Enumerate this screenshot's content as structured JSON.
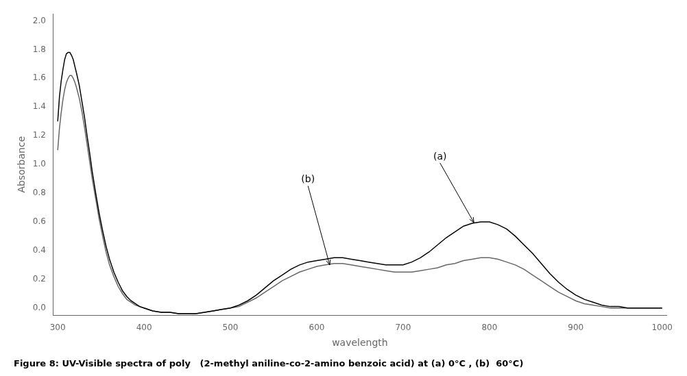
{
  "chart_data": {
    "type": "line",
    "caption": "Figure 8: UV-Visible spectra of poly   (2-methyl aniline-co-2-amino benzoic acid) at (a) 0°C , (b)  60°C)",
    "xlabel": "wavelength",
    "ylabel": "Absorbance",
    "xlim": [
      295,
      1005
    ],
    "ylim": [
      -0.05,
      2.05
    ],
    "xticks": [
      300,
      400,
      500,
      600,
      700,
      800,
      900,
      1000
    ],
    "yticks": [
      {
        "value": 0.0,
        "label": "0.0"
      },
      0.2,
      0.4,
      0.6,
      0.8,
      {
        "value": 1.0,
        "label": "1.0"
      },
      1.2,
      1.4,
      1.6,
      1.8,
      {
        "value": 2.0,
        "label": "2.0"
      }
    ],
    "grid": false,
    "x": [
      300,
      302,
      304,
      306,
      308,
      310,
      312,
      314,
      316,
      318,
      320,
      322,
      325,
      328,
      331,
      334,
      337,
      340,
      344,
      348,
      352,
      356,
      360,
      365,
      370,
      375,
      380,
      385,
      390,
      395,
      400,
      410,
      420,
      430,
      440,
      450,
      460,
      470,
      480,
      490,
      500,
      510,
      520,
      530,
      540,
      550,
      560,
      570,
      580,
      590,
      600,
      610,
      620,
      630,
      640,
      650,
      660,
      670,
      680,
      690,
      700,
      710,
      720,
      730,
      740,
      750,
      760,
      770,
      780,
      790,
      800,
      810,
      820,
      830,
      840,
      850,
      860,
      870,
      880,
      890,
      900,
      910,
      920,
      930,
      940,
      950,
      960,
      970,
      980,
      990,
      1000
    ],
    "series": [
      {
        "color": "#000000",
        "values": [
          1.3,
          1.47,
          1.58,
          1.66,
          1.73,
          1.77,
          1.78,
          1.78,
          1.76,
          1.73,
          1.68,
          1.63,
          1.55,
          1.44,
          1.33,
          1.2,
          1.08,
          0.95,
          0.8,
          0.66,
          0.54,
          0.43,
          0.34,
          0.25,
          0.18,
          0.12,
          0.08,
          0.05,
          0.03,
          0.01,
          0.0,
          -0.02,
          -0.03,
          -0.03,
          -0.04,
          -0.04,
          -0.04,
          -0.03,
          -0.02,
          -0.01,
          0.0,
          0.02,
          0.05,
          0.09,
          0.14,
          0.19,
          0.23,
          0.27,
          0.3,
          0.32,
          0.33,
          0.34,
          0.35,
          0.35,
          0.34,
          0.33,
          0.32,
          0.31,
          0.3,
          0.3,
          0.3,
          0.32,
          0.35,
          0.39,
          0.44,
          0.49,
          0.53,
          0.57,
          0.59,
          0.6,
          0.6,
          0.58,
          0.55,
          0.5,
          0.44,
          0.38,
          0.31,
          0.24,
          0.18,
          0.13,
          0.09,
          0.06,
          0.04,
          0.02,
          0.01,
          0.01,
          0.0,
          0.0,
          0.0,
          0.0,
          0.0
        ]
      },
      {
        "color": "#666666",
        "values": [
          1.1,
          1.25,
          1.36,
          1.45,
          1.52,
          1.57,
          1.6,
          1.62,
          1.62,
          1.6,
          1.57,
          1.53,
          1.46,
          1.37,
          1.26,
          1.14,
          1.02,
          0.9,
          0.76,
          0.62,
          0.5,
          0.39,
          0.3,
          0.22,
          0.15,
          0.1,
          0.06,
          0.04,
          0.02,
          0.01,
          0.0,
          -0.02,
          -0.03,
          -0.03,
          -0.04,
          -0.04,
          -0.04,
          -0.03,
          -0.02,
          -0.01,
          0.0,
          0.01,
          0.04,
          0.07,
          0.11,
          0.15,
          0.19,
          0.22,
          0.25,
          0.27,
          0.29,
          0.3,
          0.31,
          0.31,
          0.3,
          0.29,
          0.28,
          0.27,
          0.26,
          0.25,
          0.25,
          0.25,
          0.26,
          0.27,
          0.28,
          0.3,
          0.31,
          0.33,
          0.34,
          0.35,
          0.35,
          0.34,
          0.32,
          0.3,
          0.27,
          0.23,
          0.19,
          0.15,
          0.11,
          0.08,
          0.05,
          0.03,
          0.02,
          0.01,
          0.0,
          0.0,
          0.0,
          0.0,
          0.0,
          0.0,
          0.0
        ]
      }
    ],
    "annotations": [
      {
        "text": "(a)",
        "xy": [
          782,
          0.595
        ],
        "xytext": [
          735,
          1.02
        ]
      },
      {
        "text": "(b)",
        "xy": [
          615,
          0.3
        ],
        "xytext": [
          582,
          0.86
        ]
      }
    ]
  }
}
